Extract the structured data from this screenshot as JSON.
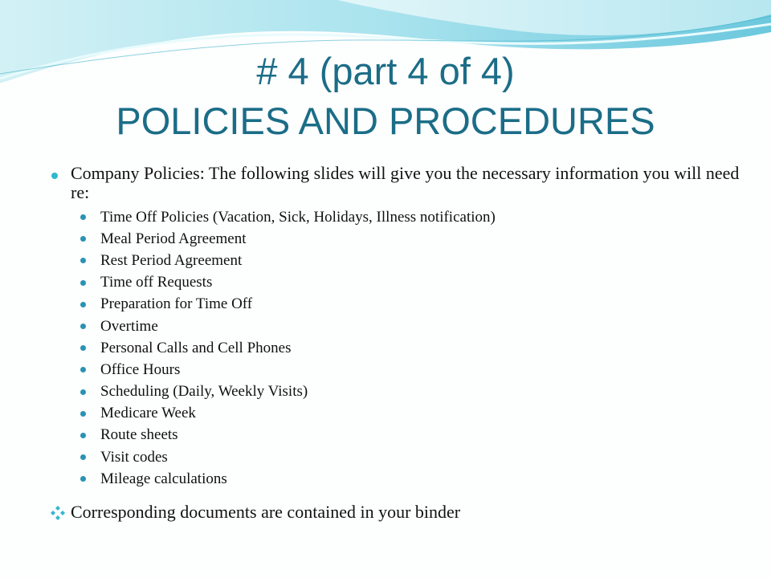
{
  "slide": {
    "title_line1": "# 4 (part 4 of 4)",
    "title_line2": "POLICIES AND PROCEDURES",
    "intro": "Company Policies:  The following slides will give you the necessary information you will need re:",
    "items": [
      "Time Off Policies (Vacation, Sick, Holidays, Illness notification)",
      "Meal Period Agreement",
      "Rest Period Agreement",
      "Time off  Requests",
      "Preparation for Time Off",
      "Overtime",
      "Personal Calls and Cell Phones",
      "Office Hours",
      "Scheduling (Daily, Weekly Visits)",
      "Medicare Week",
      "Route sheets",
      "Visit codes",
      "Mileage calculations"
    ],
    "footer_point": "Corresponding documents are contained in your binder"
  },
  "colors": {
    "title": "#1b6d87",
    "bullet_primary": "#2fb8cf",
    "bullet_secondary": "#2a93b3",
    "wave_light": "#b9ebf1",
    "wave_mid": "#7fd3e3"
  },
  "icons": {
    "level1_bullet": "circle-bullet-icon",
    "level2_bullet": "small-circle-bullet-icon",
    "footer_bullet": "four-diamond-bullet-icon"
  }
}
